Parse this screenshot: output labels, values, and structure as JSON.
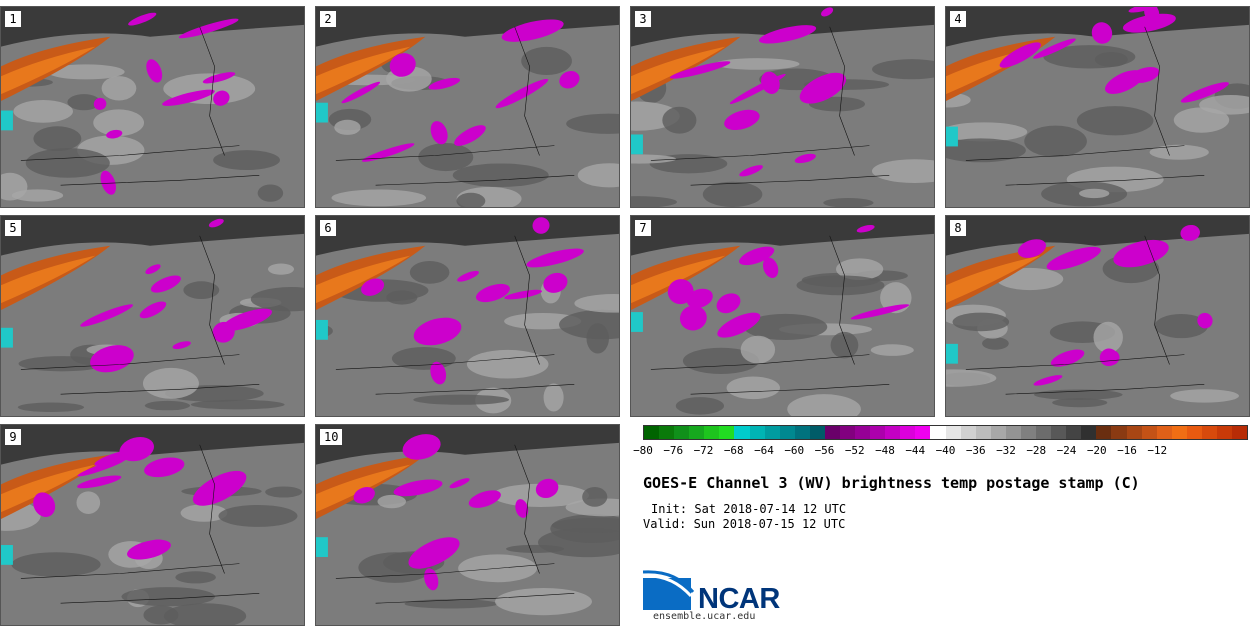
{
  "panels": [
    {
      "label": "1"
    },
    {
      "label": "2"
    },
    {
      "label": "3"
    },
    {
      "label": "4"
    },
    {
      "label": "5"
    },
    {
      "label": "6"
    },
    {
      "label": "7"
    },
    {
      "label": "8"
    },
    {
      "label": "9"
    },
    {
      "label": "10"
    }
  ],
  "colorbar": {
    "colors": [
      "#006400",
      "#0a7a0a",
      "#10901a",
      "#16a81e",
      "#1ec41e",
      "#22dc22",
      "#00cccc",
      "#00b4b4",
      "#009ca0",
      "#008890",
      "#00727e",
      "#005c68",
      "#6a006a",
      "#82007f",
      "#960096",
      "#ac00ac",
      "#c400c4",
      "#dc00dc",
      "#f000f0",
      "#ffffff",
      "#e6e6e6",
      "#d0d0d0",
      "#bcbcbc",
      "#a8a8a8",
      "#949494",
      "#808080",
      "#6c6c6c",
      "#585858",
      "#444444",
      "#303030",
      "#6a2e10",
      "#8a3a12",
      "#a84614",
      "#c45216",
      "#e06018",
      "#f06e14",
      "#e85a10",
      "#d84a0c",
      "#c83a08",
      "#b82c06"
    ],
    "ticks": [
      "−80",
      "−76",
      "−72",
      "−68",
      "−64",
      "−60",
      "−56",
      "−52",
      "−48",
      "−44",
      "−40",
      "−36",
      "−32",
      "−28",
      "−24",
      "−20",
      "−16",
      "−12"
    ]
  },
  "title": "GOES-E Channel 3 (WV) brightness temp postage stamp (C)",
  "init": "Init: Sat 2018-07-14 12 UTC",
  "valid": "Valid: Sun 2018-07-15 12 UTC",
  "logo": {
    "text": "NCAR",
    "site": "ensemble.ucar.edu"
  }
}
